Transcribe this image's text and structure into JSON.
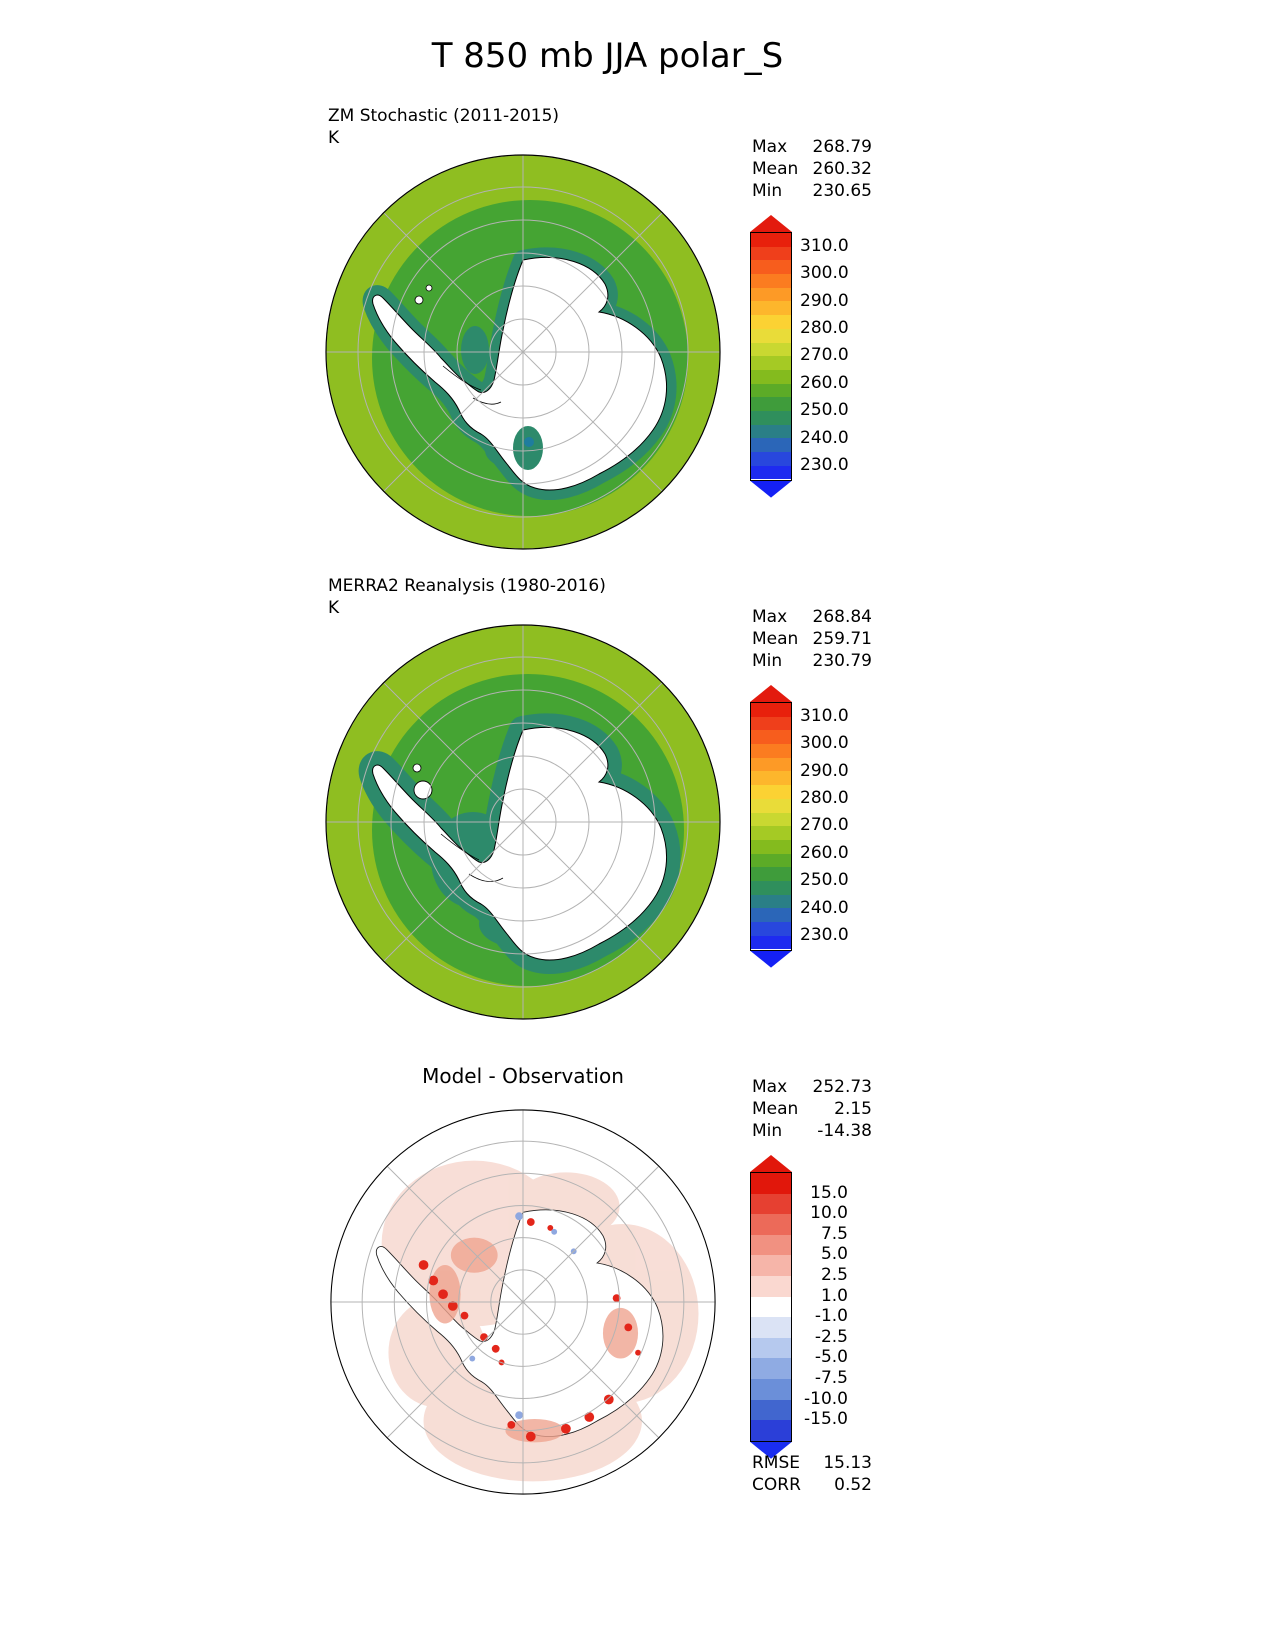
{
  "title": "T 850 mb JJA polar_S",
  "colors": {
    "map_outer": "#8fbe21",
    "map_inner": "#45a433",
    "map_coastal": "#2d8a6b",
    "map_teal": "#1f7d9e",
    "land": "#ffffff",
    "coastline": "#000000",
    "graticule": "#b3b3b3",
    "diff_pale": "#f5d3c9",
    "diff_mid": "#efa490",
    "diff_red": "#e3261a",
    "diff_blue": "#8fa8e0"
  },
  "panels": {
    "model": {
      "title": "ZM Stochastic (2011-2015)",
      "units": "K",
      "stats": [
        {
          "label": "Max",
          "value": "268.79"
        },
        {
          "label": "Mean",
          "value": "260.32"
        },
        {
          "label": "Min",
          "value": "230.65"
        }
      ],
      "colorbar": {
        "arrow_top": "#e31a0e",
        "arrow_bottom": "#1420f5",
        "colors": [
          "#e8200c",
          "#ef3f1b",
          "#f75d1d",
          "#fb7c20",
          "#fd9a26",
          "#fdb62c",
          "#fbd233",
          "#e9dc39",
          "#c9d831",
          "#a5ca24",
          "#84bb1e",
          "#5cab27",
          "#3f9c3b",
          "#2f8f5c",
          "#2a7f87",
          "#2b66b8",
          "#2847dd",
          "#1e2bf0"
        ],
        "ticks": [
          "310.0",
          "300.0",
          "290.0",
          "280.0",
          "270.0",
          "260.0",
          "250.0",
          "240.0",
          "230.0"
        ]
      }
    },
    "obs": {
      "title": "MERRA2 Reanalysis (1980-2016)",
      "units": "K",
      "stats": [
        {
          "label": "Max",
          "value": "268.84"
        },
        {
          "label": "Mean",
          "value": "259.71"
        },
        {
          "label": "Min",
          "value": "230.79"
        }
      ],
      "colorbar": {
        "arrow_top": "#e31a0e",
        "arrow_bottom": "#1420f5",
        "colors": [
          "#e8200c",
          "#ef3f1b",
          "#f75d1d",
          "#fb7c20",
          "#fd9a26",
          "#fdb62c",
          "#fbd233",
          "#e9dc39",
          "#c9d831",
          "#a5ca24",
          "#84bb1e",
          "#5cab27",
          "#3f9c3b",
          "#2f8f5c",
          "#2a7f87",
          "#2b66b8",
          "#2847dd",
          "#1e2bf0"
        ],
        "ticks": [
          "310.0",
          "300.0",
          "290.0",
          "280.0",
          "270.0",
          "260.0",
          "250.0",
          "240.0",
          "230.0"
        ]
      }
    },
    "diff": {
      "title": "Model - Observation",
      "stats": [
        {
          "label": "Max",
          "value": "252.73"
        },
        {
          "label": "Mean",
          "value": "2.15"
        },
        {
          "label": "Min",
          "value": "-14.38"
        }
      ],
      "colorbar": {
        "arrow_top": "#e1170b",
        "arrow_bottom": "#1a2df0",
        "colors": [
          "#e1170b",
          "#e64031",
          "#ec6a59",
          "#f19181",
          "#f6b5a9",
          "#fad8d0",
          "#ffffff",
          "#dbe3f5",
          "#b6c9ee",
          "#8fabe3",
          "#6b8fd9",
          "#4166cf",
          "#2b3fd8"
        ],
        "ticks": [
          "15.0",
          "10.0",
          "7.5",
          "5.0",
          "2.5",
          "1.0",
          "-1.0",
          "-2.5",
          "-5.0",
          "-7.5",
          "-10.0",
          "-15.0"
        ]
      },
      "metrics": [
        {
          "label": "RMSE",
          "value": "15.13"
        },
        {
          "label": "CORR",
          "value": "0.52"
        }
      ]
    }
  },
  "chart_data": [
    {
      "type": "heatmap",
      "subtype": "south-polar-stereographic-map",
      "title": "ZM Stochastic (2011-2015)",
      "variable": "T 850 mb JJA polar_S",
      "units": "K",
      "stats": {
        "max": 268.79,
        "mean": 260.32,
        "min": 230.65
      },
      "colorbar_ticks": [
        310.0,
        300.0,
        290.0,
        280.0,
        270.0,
        260.0,
        250.0,
        240.0,
        230.0
      ],
      "legend_position": "right",
      "notes": "Antarctic polar map; ocean ring ~265-275 K (yellow-green), inner ring ~255-265 K (green), coastal band ~245-255 K (sea green), continent interior below plotted range (white)"
    },
    {
      "type": "heatmap",
      "subtype": "south-polar-stereographic-map",
      "title": "MERRA2 Reanalysis (1980-2016)",
      "variable": "T 850 mb JJA polar_S",
      "units": "K",
      "stats": {
        "max": 268.84,
        "mean": 259.71,
        "min": 230.79
      },
      "colorbar_ticks": [
        310.0,
        300.0,
        290.0,
        280.0,
        270.0,
        260.0,
        250.0,
        240.0,
        230.0
      ],
      "legend_position": "right",
      "notes": "Same palette as model panel; broader sea-green coastal band"
    },
    {
      "type": "heatmap",
      "subtype": "south-polar-stereographic-map",
      "title": "Model - Observation",
      "units": "K",
      "stats": {
        "max": 252.73,
        "mean": 2.15,
        "min": -14.38,
        "rmse": 15.13,
        "corr": 0.52
      },
      "colorbar_ticks": [
        15.0,
        10.0,
        7.5,
        5.0,
        2.5,
        1.0,
        -1.0,
        -2.5,
        -5.0,
        -7.5,
        -10.0,
        -15.0
      ],
      "legend_position": "right",
      "notes": "Mostly weak warm bias (pale pink 1-5 K) over ocean ring; strong warm spots (>15 K, red) along Antarctic coastline and peninsula; few cool spots (blue) near coast"
    }
  ]
}
